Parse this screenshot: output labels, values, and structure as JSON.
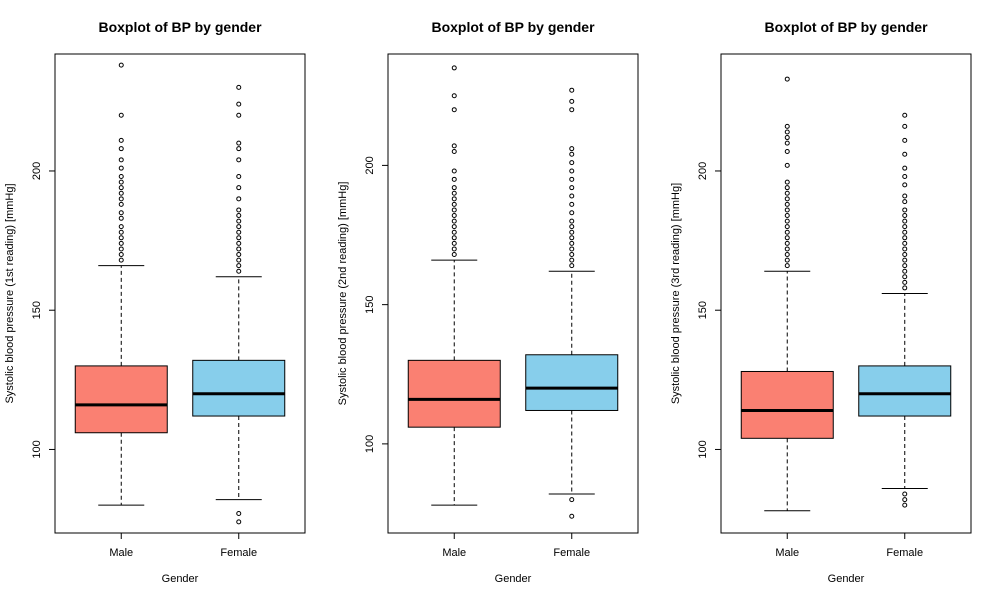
{
  "colors": {
    "male": "#FA8072",
    "female": "#87CEEB",
    "axis": "#000000",
    "background": "#FFFFFF"
  },
  "chart_data": [
    {
      "type": "boxplot",
      "title": "Boxplot of BP by gender",
      "xlabel": "Gender",
      "ylabel": "Systolic blood pressure (1st reading) [mmHg]",
      "ylim": [
        70,
        242
      ],
      "yticks": [
        100,
        150,
        200
      ],
      "categories": [
        "Male",
        "Female"
      ],
      "boxes": [
        {
          "name": "Male",
          "min": 80,
          "q1": 106,
          "median": 116,
          "q3": 130,
          "max": 166,
          "outliers": [
            168,
            170,
            172,
            174,
            176,
            178,
            180,
            183,
            185,
            188,
            190,
            192,
            194,
            196,
            198,
            201,
            204,
            208,
            211,
            220,
            238
          ]
        },
        {
          "name": "Female",
          "min": 82,
          "q1": 112,
          "median": 120,
          "q3": 132,
          "max": 162,
          "outliers": [
            74,
            77,
            164,
            166,
            168,
            170,
            172,
            174,
            176,
            178,
            180,
            182,
            184,
            186,
            190,
            194,
            198,
            204,
            208,
            210,
            220,
            224,
            230
          ]
        }
      ]
    },
    {
      "type": "boxplot",
      "title": "Boxplot of BP by gender",
      "xlabel": "Gender",
      "ylabel": "Systolic blood pressure (2nd reading) [mmHg]",
      "ylim": [
        68,
        240
      ],
      "yticks": [
        100,
        150,
        200
      ],
      "categories": [
        "Male",
        "Female"
      ],
      "boxes": [
        {
          "name": "Male",
          "min": 78,
          "q1": 106,
          "median": 116,
          "q3": 130,
          "max": 166,
          "outliers": [
            168,
            170,
            172,
            174,
            176,
            178,
            180,
            182,
            184,
            186,
            188,
            190,
            192,
            195,
            198,
            205,
            207,
            220,
            225,
            235
          ]
        },
        {
          "name": "Female",
          "min": 82,
          "q1": 112,
          "median": 120,
          "q3": 132,
          "max": 162,
          "outliers": [
            74,
            80,
            164,
            166,
            168,
            170,
            172,
            174,
            176,
            178,
            180,
            183,
            186,
            189,
            192,
            195,
            198,
            201,
            204,
            206,
            220,
            223,
            227
          ]
        }
      ]
    },
    {
      "type": "boxplot",
      "title": "Boxplot of BP by gender",
      "xlabel": "Gender",
      "ylabel": "Systolic blood pressure (3rd reading) [mmHg]",
      "ylim": [
        70,
        242
      ],
      "yticks": [
        100,
        150,
        200
      ],
      "categories": [
        "Male",
        "Female"
      ],
      "boxes": [
        {
          "name": "Male",
          "min": 78,
          "q1": 104,
          "median": 114,
          "q3": 128,
          "max": 164,
          "outliers": [
            166,
            168,
            170,
            172,
            174,
            176,
            178,
            180,
            182,
            184,
            186,
            188,
            190,
            192,
            194,
            196,
            202,
            207,
            210,
            212,
            214,
            216,
            233
          ]
        },
        {
          "name": "Female",
          "min": 86,
          "q1": 112,
          "median": 120,
          "q3": 130,
          "max": 156,
          "outliers": [
            80,
            82,
            84,
            158,
            160,
            162,
            164,
            166,
            168,
            170,
            172,
            174,
            176,
            178,
            180,
            182,
            184,
            186,
            189,
            191,
            195,
            198,
            201,
            206,
            211,
            216,
            220
          ]
        }
      ]
    }
  ]
}
